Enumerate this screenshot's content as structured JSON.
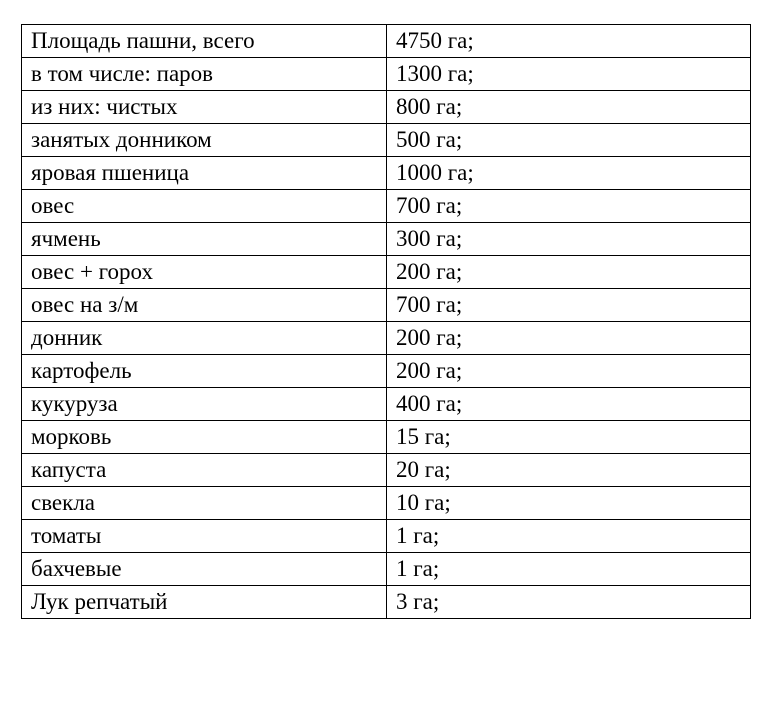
{
  "table": {
    "rows": [
      {
        "name": "Площадь пашни, всего",
        "value": "4750 га;"
      },
      {
        "name": "в том числе: паров",
        "value": "1300 га;"
      },
      {
        "name": "из них: чистых",
        "value": "800 га;"
      },
      {
        "name": "занятых донником",
        "value": "500 га;"
      },
      {
        "name": "яровая пшеница",
        "value": "1000 га;"
      },
      {
        "name": "овес",
        "value": "700 га;"
      },
      {
        "name": "ячмень",
        "value": "300 га;"
      },
      {
        "name": "овес + горох",
        "value": "200 га;"
      },
      {
        "name": "овес на з/м",
        "value": "700 га;"
      },
      {
        "name": "донник",
        "value": "200 га;"
      },
      {
        "name": "картофель",
        "value": "200 га;"
      },
      {
        "name": "кукуруза",
        "value": "400 га;"
      },
      {
        "name": "морковь",
        "value": "15 га;"
      },
      {
        "name": "капуста",
        "value": "20 га;"
      },
      {
        "name": "свекла",
        "value": "10 га;"
      },
      {
        "name": "томаты",
        "value": "1 га;"
      },
      {
        "name": "бахчевые",
        "value": "1 га;"
      },
      {
        "name": "Лук репчатый",
        "value": "3 га;"
      }
    ]
  }
}
